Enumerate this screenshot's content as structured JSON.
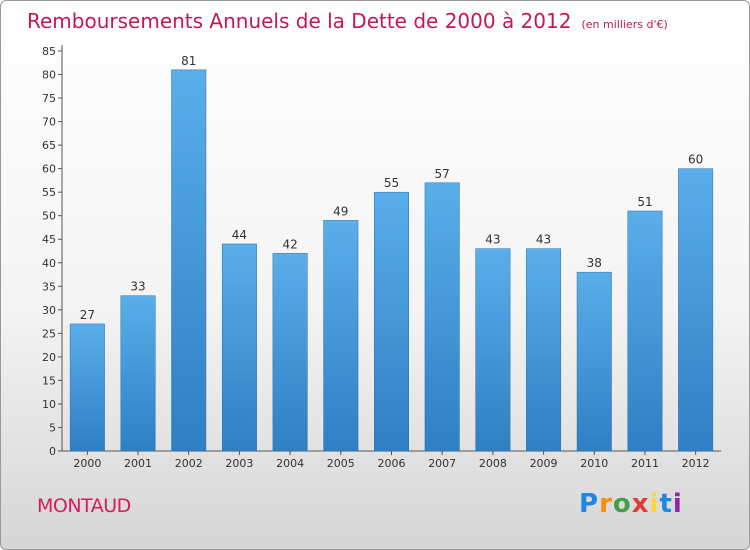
{
  "title": "Remboursements Annuels de la Dette de 2000 à 2012",
  "title_unit": "(en milliers d'€)",
  "place": "MONTAUD",
  "logo": {
    "letters": [
      "P",
      "r",
      "o",
      "x",
      "i",
      "t",
      "i"
    ],
    "colors": [
      "#1e88e5",
      "#fb8c00",
      "#43a047",
      "#e53935",
      "#fdd835",
      "#1e88e5",
      "#8e24aa"
    ]
  },
  "colors": {
    "bar_top": "#5aaeea",
    "bar_bottom": "#2f7fc4",
    "title": "#c2185b"
  },
  "chart_data": {
    "type": "bar",
    "categories": [
      "2000",
      "2001",
      "2002",
      "2003",
      "2004",
      "2005",
      "2006",
      "2007",
      "2008",
      "2009",
      "2010",
      "2011",
      "2012"
    ],
    "values": [
      27,
      33,
      81,
      44,
      42,
      49,
      55,
      57,
      43,
      43,
      38,
      51,
      60
    ],
    "ylim": [
      0,
      85
    ],
    "yticks": [
      0,
      5,
      10,
      15,
      20,
      25,
      30,
      35,
      40,
      45,
      50,
      55,
      60,
      65,
      70,
      75,
      80,
      85
    ],
    "grid": false,
    "xlabel": "",
    "ylabel": ""
  }
}
